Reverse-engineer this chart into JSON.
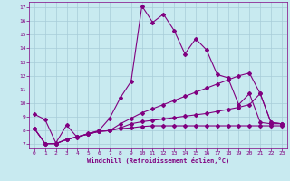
{
  "background_color": "#c8eaf0",
  "grid_color": "#a8ccd8",
  "line_color": "#800080",
  "marker_color": "#800080",
  "xlabel": "Windchill (Refroidissement éolien,°C)",
  "tick_color": "#800080",
  "xlim": [
    -0.5,
    23.5
  ],
  "ylim": [
    6.7,
    17.4
  ],
  "yticks": [
    7,
    8,
    9,
    10,
    11,
    12,
    13,
    14,
    15,
    16,
    17
  ],
  "xticks": [
    0,
    1,
    2,
    3,
    4,
    5,
    6,
    7,
    8,
    9,
    10,
    11,
    12,
    13,
    14,
    15,
    16,
    17,
    18,
    19,
    20,
    21,
    22,
    23
  ],
  "line1_x": [
    0,
    1,
    2,
    3,
    4,
    5,
    6,
    7,
    8,
    9,
    10,
    11,
    12,
    13,
    14,
    15,
    16,
    17,
    18,
    19,
    20,
    21,
    22,
    23
  ],
  "line1_y": [
    9.2,
    8.8,
    7.1,
    8.4,
    7.5,
    7.8,
    8.0,
    8.9,
    10.4,
    11.6,
    17.1,
    15.9,
    16.5,
    15.3,
    13.6,
    14.7,
    13.9,
    12.1,
    11.85,
    9.9,
    10.7,
    8.6,
    8.5,
    8.5
  ],
  "line2_x": [
    0,
    1,
    2,
    3,
    4,
    5,
    6,
    7,
    8,
    9,
    10,
    11,
    12,
    13,
    14,
    15,
    16,
    17,
    18,
    19,
    20,
    21,
    22,
    23
  ],
  "line2_y": [
    8.15,
    7.05,
    7.05,
    7.35,
    7.55,
    7.75,
    7.95,
    8.0,
    8.15,
    8.2,
    8.3,
    8.35,
    8.35,
    8.35,
    8.35,
    8.35,
    8.35,
    8.35,
    8.35,
    8.35,
    8.35,
    8.35,
    8.35,
    8.35
  ],
  "line3_x": [
    0,
    1,
    2,
    3,
    4,
    5,
    6,
    7,
    8,
    9,
    10,
    11,
    12,
    13,
    14,
    15,
    16,
    17,
    18,
    19,
    20,
    21,
    22,
    23
  ],
  "line3_y": [
    8.15,
    7.05,
    7.05,
    7.35,
    7.55,
    7.75,
    7.95,
    8.0,
    8.2,
    8.5,
    8.65,
    8.75,
    8.85,
    8.95,
    9.05,
    9.15,
    9.25,
    9.4,
    9.55,
    9.7,
    9.9,
    10.7,
    8.6,
    8.5
  ],
  "line4_x": [
    0,
    1,
    2,
    3,
    4,
    5,
    6,
    7,
    8,
    9,
    10,
    11,
    12,
    13,
    14,
    15,
    16,
    17,
    18,
    19,
    20,
    21,
    22,
    23
  ],
  "line4_y": [
    8.15,
    7.05,
    7.05,
    7.35,
    7.55,
    7.75,
    7.95,
    8.0,
    8.5,
    8.9,
    9.3,
    9.6,
    9.9,
    10.2,
    10.5,
    10.8,
    11.1,
    11.4,
    11.7,
    12.0,
    12.2,
    10.7,
    8.6,
    8.5
  ]
}
